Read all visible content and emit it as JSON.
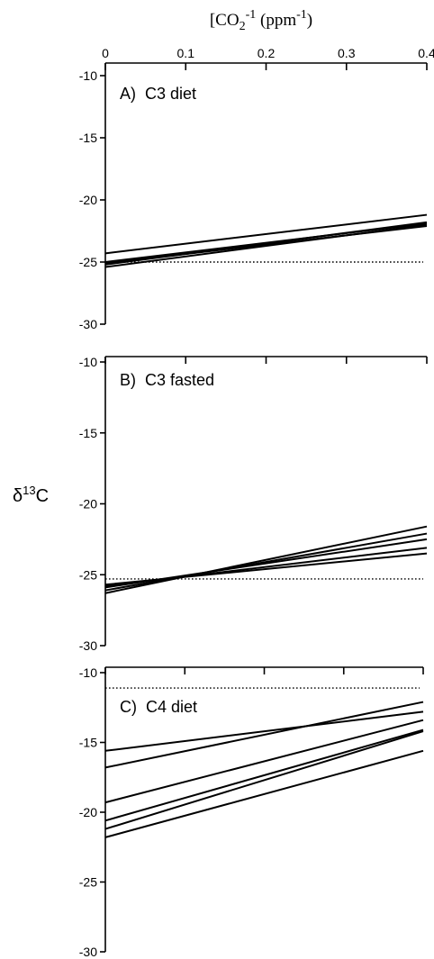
{
  "top_axis": {
    "title_main": "[CO",
    "title_sub": "2",
    "title_sup": "-1",
    "title_unit_open": " (ppm",
    "title_unit_sup": "-1",
    "title_unit_close": ")",
    "ticks": [
      0,
      0.1,
      0.2,
      0.3,
      0.4
    ],
    "tick_labels": [
      "0",
      "0.1",
      "0.2",
      "0.3",
      "0.4"
    ]
  },
  "y_axis_label": {
    "delta": "δ",
    "sup": "13",
    "element": "C"
  },
  "chart_data": [
    {
      "type": "line",
      "panel_label": "A)  C3 diet",
      "xlim": [
        0,
        0.4
      ],
      "ylim": [
        -30,
        -10
      ],
      "yticks": [
        -10,
        -15,
        -20,
        -25,
        -30
      ],
      "ytick_labels": [
        "-10",
        "-15",
        "-20",
        "-25",
        "-30"
      ],
      "reference_y": -25,
      "series": [
        {
          "x": [
            0,
            0.4
          ],
          "y": [
            -24.3,
            -21.2
          ]
        },
        {
          "x": [
            0,
            0.4
          ],
          "y": [
            -25.0,
            -21.9
          ]
        },
        {
          "x": [
            0,
            0.4
          ],
          "y": [
            -25.2,
            -21.8
          ]
        },
        {
          "x": [
            0,
            0.4
          ],
          "y": [
            -25.4,
            -22.0
          ]
        },
        {
          "x": [
            0,
            0.4
          ],
          "y": [
            -25.1,
            -22.1
          ]
        }
      ]
    },
    {
      "type": "line",
      "panel_label": "B)  C3 fasted",
      "xlim": [
        0,
        0.4
      ],
      "ylim": [
        -30,
        -10
      ],
      "yticks": [
        -10,
        -15,
        -20,
        -25,
        -30
      ],
      "ytick_labels": [
        "-10",
        "-15",
        "-20",
        "-25",
        "-30"
      ],
      "reference_y": -25.3,
      "series": [
        {
          "x": [
            0,
            0.4
          ],
          "y": [
            -26.3,
            -21.6
          ]
        },
        {
          "x": [
            0,
            0.4
          ],
          "y": [
            -26.1,
            -22.1
          ]
        },
        {
          "x": [
            0,
            0.4
          ],
          "y": [
            -25.9,
            -22.5
          ]
        },
        {
          "x": [
            0,
            0.4
          ],
          "y": [
            -25.8,
            -23.1
          ]
        },
        {
          "x": [
            0,
            0.4
          ],
          "y": [
            -25.7,
            -23.5
          ]
        }
      ]
    },
    {
      "type": "line",
      "panel_label": "C)  C4 diet",
      "xlim": [
        0,
        0.4
      ],
      "ylim": [
        -30,
        -10
      ],
      "yticks": [
        -10,
        -15,
        -20,
        -25,
        -30
      ],
      "ytick_labels": [
        "-10",
        "-15",
        "-20",
        "-25",
        "-30"
      ],
      "reference_y": -11.1,
      "series": [
        {
          "x": [
            0,
            0.4
          ],
          "y": [
            -15.6,
            -12.8
          ]
        },
        {
          "x": [
            0,
            0.4
          ],
          "y": [
            -16.8,
            -12.1
          ]
        },
        {
          "x": [
            0,
            0.4
          ],
          "y": [
            -19.3,
            -13.4
          ]
        },
        {
          "x": [
            0,
            0.4
          ],
          "y": [
            -20.6,
            -14.1
          ]
        },
        {
          "x": [
            0,
            0.4
          ],
          "y": [
            -21.2,
            -14.2
          ]
        },
        {
          "x": [
            0,
            0.4
          ],
          "y": [
            -21.8,
            -15.6
          ]
        }
      ]
    }
  ]
}
